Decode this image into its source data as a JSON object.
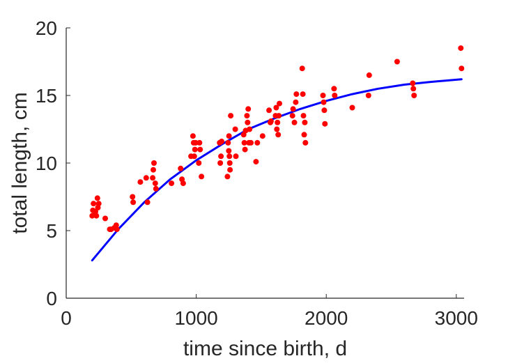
{
  "chart_data": {
    "type": "scatter",
    "title": "",
    "xlabel": "time since birth, d",
    "ylabel": "total length, cm",
    "xlim": [
      0,
      3060
    ],
    "ylim": [
      0,
      20
    ],
    "xticks": [
      0,
      1000,
      2000,
      3000
    ],
    "yticks": [
      0,
      5,
      10,
      15,
      20
    ],
    "grid": false,
    "legend": "none",
    "box": "left-bottom axes only",
    "colors": {
      "points": "#ff0000",
      "curve": "#0000ff",
      "axes": "#262626"
    },
    "series": [
      {
        "kind": "points",
        "x": [
          200,
          205,
          210,
          225,
          232,
          240,
          244,
          250,
          300,
          335,
          345,
          370,
          385,
          390,
          510,
          515,
          570,
          615,
          625,
          665,
          670,
          675,
          685,
          690,
          810,
          880,
          890,
          900,
          960,
          975,
          980,
          985,
          990,
          995,
          1020,
          1025,
          1030,
          1040,
          1180,
          1185,
          1190,
          1195,
          1240,
          1245,
          1250,
          1252,
          1255,
          1258,
          1260,
          1265,
          1300,
          1305,
          1365,
          1370,
          1375,
          1380,
          1390,
          1395,
          1400,
          1405,
          1410,
          1420,
          1460,
          1470,
          1510,
          1560,
          1570,
          1575,
          1610,
          1615,
          1620,
          1625,
          1630,
          1635,
          1640,
          1740,
          1745,
          1755,
          1765,
          1770,
          1815,
          1820,
          1825,
          1830,
          1835,
          1840,
          1975,
          1980,
          1985,
          1990,
          2060,
          2065,
          2200,
          2325,
          2330,
          2545,
          2665,
          2670,
          2675,
          3035,
          3040
        ],
        "y": [
          6.1,
          6.5,
          7.0,
          6.4,
          6.1,
          7.4,
          6.7,
          7.0,
          5.9,
          5.1,
          5.1,
          5.2,
          5.4,
          5.1,
          7.5,
          7.1,
          8.6,
          8.9,
          7.1,
          8.9,
          9.5,
          10.0,
          8.5,
          8.1,
          8.5,
          9.6,
          8.8,
          8.5,
          10.5,
          12.0,
          11.5,
          10.5,
          11.0,
          11.5,
          10.0,
          11.5,
          11.0,
          9.0,
          11.5,
          10.0,
          10.5,
          11.6,
          9.0,
          11.5,
          10.9,
          12.0,
          10.5,
          10.0,
          9.5,
          13.5,
          12.5,
          10.5,
          12.1,
          11.5,
          11.0,
          12.4,
          13.5,
          13.0,
          14.0,
          11.5,
          12.5,
          11.5,
          10.1,
          11.5,
          12.0,
          13.9,
          13.0,
          13.1,
          13.5,
          14.1,
          12.5,
          13.0,
          12.1,
          13.5,
          14.4,
          13.5,
          14.0,
          13.0,
          14.5,
          15.1,
          17.0,
          15.1,
          13.5,
          12.1,
          13.0,
          11.5,
          15.0,
          14.5,
          13.9,
          12.9,
          15.5,
          15.0,
          14.1,
          15.0,
          16.5,
          17.5,
          15.9,
          15.5,
          15.0,
          18.5,
          17.0
        ]
      },
      {
        "kind": "fitted-curve",
        "x": [
          200,
          400,
          600,
          800,
          1000,
          1200,
          1400,
          1600,
          1800,
          2000,
          2200,
          2400,
          2600,
          2800,
          3040
        ],
        "y": [
          2.8,
          5.1,
          7.1,
          8.8,
          10.2,
          11.4,
          12.5,
          13.3,
          14.0,
          14.6,
          15.1,
          15.5,
          15.8,
          16.0,
          16.2
        ]
      }
    ]
  }
}
